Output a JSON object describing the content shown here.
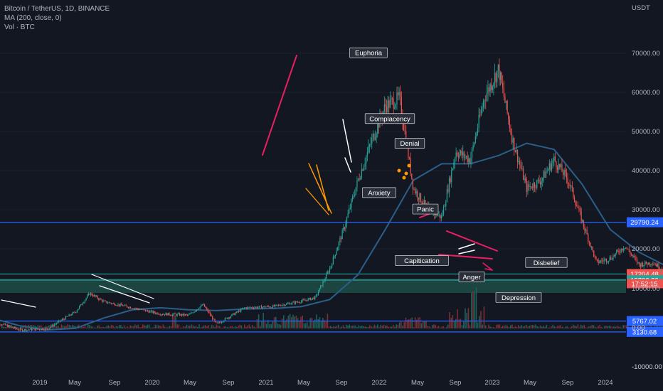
{
  "header": {
    "symbol": "Bitcoin / TetherUS, 1D, BINANCE",
    "ma": "MA (200, close, 0)",
    "vol": "Vol · BTC"
  },
  "price_axis": {
    "unit": "USDT"
  },
  "colors": {
    "background": "#131722",
    "up": "#26a69a",
    "down": "#ef5350",
    "ma": "#2b5f8a",
    "hline": "#2962ff",
    "pink": "#e91e63",
    "orange": "#ff9800",
    "white": "#ffffff"
  },
  "chart_data": {
    "type": "line",
    "title": "Bitcoin / TetherUS, 1D, BINANCE",
    "scale": "linear",
    "ylim": [
      -12000,
      80000
    ],
    "x_ticks": [
      "2019",
      "May",
      "Sep",
      "2020",
      "May",
      "Sep",
      "2021",
      "May",
      "Sep",
      "2022",
      "May",
      "Sep",
      "2023",
      "May",
      "Sep",
      "2024"
    ],
    "y_ticks": [
      "70000.00",
      "60000.00",
      "50000.00",
      "40000.00",
      "30000.00",
      "20000.00",
      "10000.00",
      "0.00",
      "-10000.00"
    ],
    "series": [
      {
        "name": "Bitcoin / TetherUS",
        "x": [
          "2018-11",
          "2019-01",
          "2019-03",
          "2019-05",
          "2019-06",
          "2019-07",
          "2019-09",
          "2019-11",
          "2020-01",
          "2020-02",
          "2020-03",
          "2020-05",
          "2020-07",
          "2020-09",
          "2020-10",
          "2020-11",
          "2020-12",
          "2021-01",
          "2021-02",
          "2021-03",
          "2021-04",
          "2021-05",
          "2021-06",
          "2021-07",
          "2021-08",
          "2021-09",
          "2021-10",
          "2021-11",
          "2021-12",
          "2022-01",
          "2022-02",
          "2022-03",
          "2022-04",
          "2022-05",
          "2022-06",
          "2022-07",
          "2022-08",
          "2022-09",
          "2022-10",
          "2022-11",
          "2022-12"
        ],
        "values": [
          5800,
          3600,
          3900,
          8000,
          12500,
          10500,
          9000,
          7500,
          7200,
          9800,
          5000,
          9000,
          9300,
          10600,
          11500,
          18500,
          28000,
          40000,
          50000,
          58000,
          60000,
          38000,
          33000,
          31000,
          47000,
          45000,
          60000,
          67000,
          50000,
          38000,
          40000,
          45000,
          40000,
          30000,
          20000,
          21000,
          24000,
          19500,
          20000,
          17500,
          17200
        ]
      },
      {
        "name": "MA (200, close, 0)",
        "x": [
          "2018-11",
          "2019-01",
          "2019-03",
          "2019-05",
          "2019-07",
          "2019-09",
          "2019-11",
          "2020-01",
          "2020-03",
          "2020-05",
          "2020-07",
          "2020-09",
          "2020-11",
          "2021-01",
          "2021-03",
          "2021-05",
          "2021-07",
          "2021-09",
          "2021-11",
          "2022-01",
          "2022-03",
          "2022-05",
          "2022-07",
          "2022-09",
          "2022-11"
        ],
        "values": [
          6500,
          4600,
          3600,
          4000,
          6500,
          8500,
          9000,
          8500,
          8300,
          8700,
          8800,
          9300,
          11000,
          17000,
          28000,
          40000,
          44000,
          44000,
          46000,
          49000,
          47500,
          39000,
          28000,
          22500,
          19000
        ]
      }
    ],
    "horizontal_levels": [
      {
        "value": 29790.24,
        "label": "29790.24"
      },
      {
        "value": 17204.48,
        "label": "17204.48"
      },
      {
        "value": 15722.59,
        "label": "15722.59"
      },
      {
        "value": 5767.02,
        "label": "5767.02"
      },
      {
        "value": 3130.68,
        "label": "3130.68"
      }
    ],
    "countdown": "17:52:15",
    "psychology_labels": [
      {
        "text": "Euphoria",
        "date": "2021-11",
        "value": 71000
      },
      {
        "text": "Complacency",
        "date": "2022-01",
        "value": 55000
      },
      {
        "text": "Denial",
        "date": "2022-05",
        "value": 49000
      },
      {
        "text": "Anxiety",
        "date": "2022-01",
        "value": 37000
      },
      {
        "text": "Panic",
        "date": "2022-05",
        "value": 33000
      },
      {
        "text": "Capitication",
        "date": "2022-05",
        "value": 20500
      },
      {
        "text": "Anger",
        "date": "2022-10",
        "value": 16500
      },
      {
        "text": "Disbelief",
        "date": "2023-04",
        "value": 20000
      },
      {
        "text": "Depression",
        "date": "2023-02",
        "value": 11500
      }
    ],
    "volume_axis": {
      "ticks": [
        "0.00",
        "-10000.00"
      ]
    }
  }
}
